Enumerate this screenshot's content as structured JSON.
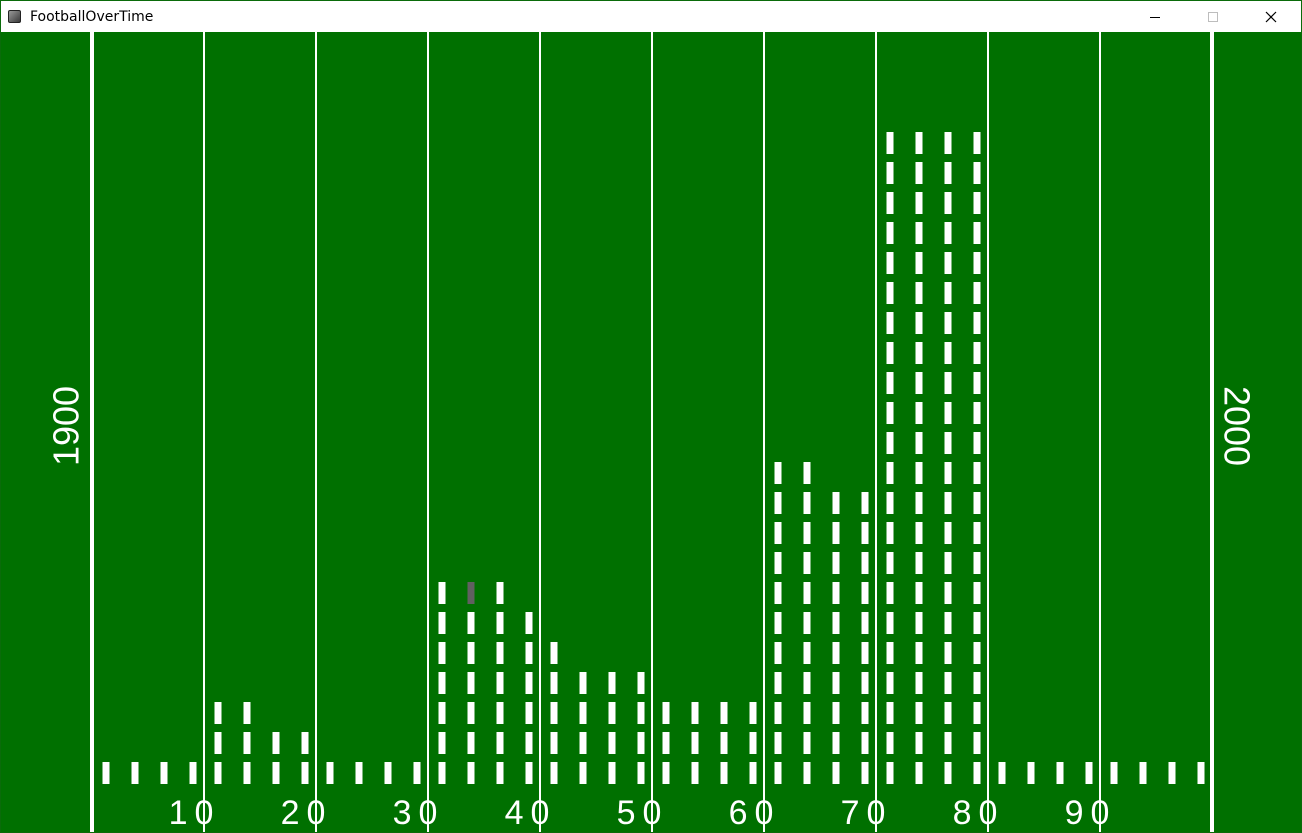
{
  "window": {
    "title": "FootballOverTime",
    "minimize_icon": "minimize-icon",
    "maximize_icon": "maximize-icon",
    "close_icon": "close-icon"
  },
  "colors": {
    "field": "#007000",
    "lines": "#ffffff",
    "highlight": "#606060",
    "titlebar": "#ffffff"
  },
  "chart_data": {
    "type": "bar",
    "xlabel_left": "1900",
    "xlabel_right": "2000",
    "decade_labels": [
      "10",
      "20",
      "30",
      "40",
      "50",
      "60",
      "70",
      "80",
      "90"
    ],
    "categories": [
      "1900",
      "1903",
      "1905",
      "1908",
      "1910",
      "1913",
      "1915",
      "1918",
      "1920",
      "1923",
      "1925",
      "1928",
      "1930",
      "1933",
      "1935",
      "1938",
      "1940",
      "1943",
      "1945",
      "1948",
      "1950",
      "1953",
      "1955",
      "1958",
      "1960",
      "1963",
      "1965",
      "1968",
      "1970",
      "1973",
      "1975",
      "1978",
      "1980",
      "1983",
      "1985",
      "1988",
      "1990",
      "1993",
      "1995",
      "1998"
    ],
    "values": [
      1,
      1,
      1,
      1,
      3,
      3,
      2,
      2,
      1,
      1,
      1,
      1,
      7,
      7,
      7,
      6,
      5,
      4,
      4,
      4,
      3,
      3,
      3,
      3,
      11,
      11,
      10,
      10,
      22,
      22,
      22,
      22,
      1,
      1,
      1,
      1,
      1,
      1,
      1,
      1
    ],
    "highlight": {
      "category": "1933",
      "level": 7
    },
    "ylim": [
      0,
      22
    ]
  }
}
